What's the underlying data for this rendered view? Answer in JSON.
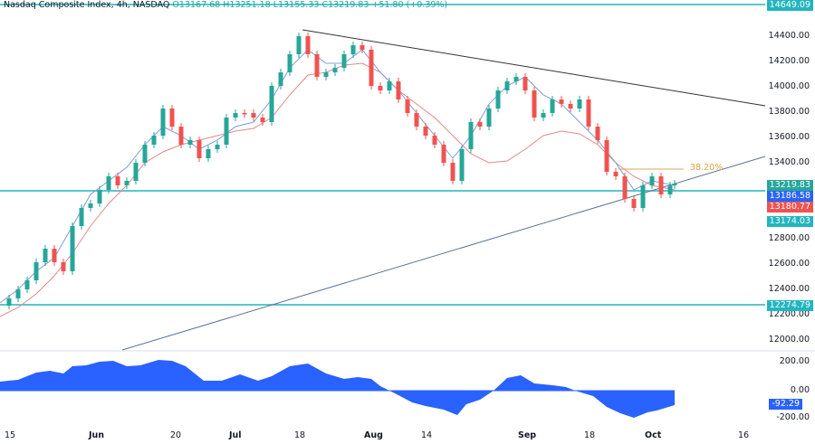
{
  "header": {
    "symbol": "Nasdaq Composite Index, 4h, NASDAQ",
    "open": "O13167.68",
    "high": "H13251.18",
    "low": "L13155.33",
    "close": "C13219.83",
    "change": "+51.80 (+0.39%)"
  },
  "colors": {
    "up": "#26a69a",
    "down": "#ef5350",
    "level_line": "#22b5bf",
    "trendline_down": "#333333",
    "trendline_up": "#5b7396",
    "ma_fast": "#7f9cd4",
    "ma_slow": "#e08a8a",
    "fib": "#e0b873",
    "oscillator": "#2962ff"
  },
  "price_axis": {
    "ticks": [
      "14400.00",
      "14200.00",
      "14000.00",
      "13800.00",
      "13600.00",
      "13400.00",
      "12800.00",
      "12600.00",
      "12400.00",
      "12200.00",
      "12000.00"
    ],
    "tags": [
      {
        "label": "14649.09",
        "color": "#22b5bf"
      },
      {
        "label": "13219.83",
        "color": "#26a69a"
      },
      {
        "label": "13186.58",
        "color": "#2962ff"
      },
      {
        "label": "13180.77",
        "color": "#ef5350"
      },
      {
        "label": "13174.03",
        "color": "#22b5bf"
      },
      {
        "label": "12274.79",
        "color": "#22b5bf"
      }
    ]
  },
  "osc_axis": {
    "ticks": [
      "200.00",
      "0.00",
      "-200.00"
    ],
    "tag": "-92.29"
  },
  "fib_label": "38.20%",
  "time_axis": [
    {
      "label": "15",
      "bold": false
    },
    {
      "label": "Jun",
      "bold": true
    },
    {
      "label": "20",
      "bold": false
    },
    {
      "label": "Jul",
      "bold": true
    },
    {
      "label": "18",
      "bold": false
    },
    {
      "label": "Aug",
      "bold": true
    },
    {
      "label": "14",
      "bold": false
    },
    {
      "label": "Sep",
      "bold": true
    },
    {
      "label": "18",
      "bold": false
    },
    {
      "label": "Oct",
      "bold": true
    },
    {
      "label": "16",
      "bold": false
    }
  ],
  "chart_data": {
    "type": "candlestick",
    "title": "Nasdaq Composite Index, 4h, NASDAQ",
    "ohlc_last": {
      "open": 13167.68,
      "high": 13251.18,
      "low": 13155.33,
      "close": 13219.83,
      "change": 51.8,
      "change_pct": 0.39
    },
    "ylim": [
      11900,
      14700
    ],
    "horizontal_levels": [
      14649.09,
      13174.03,
      12274.79
    ],
    "fib_level": {
      "label": "38.20%",
      "price": 13340
    },
    "trendlines": [
      {
        "name": "descending resistance",
        "from": {
          "x": "Jul 18",
          "price": 14450
        },
        "to": {
          "x": "Oct 20",
          "price": 13860
        }
      },
      {
        "name": "ascending support",
        "from": {
          "x": "Jun 1",
          "price": 11950
        },
        "to": {
          "x": "Oct 20",
          "price": 13430
        }
      }
    ],
    "x_ticks": [
      "15",
      "Jun",
      "20",
      "Jul",
      "18",
      "Aug",
      "14",
      "Sep",
      "18",
      "Oct",
      "16"
    ],
    "approx_close_path": [
      {
        "x": "May 15",
        "close": 12250
      },
      {
        "x": "May 22",
        "close": 12450
      },
      {
        "x": "May 29",
        "close": 12650
      },
      {
        "x": "Jun 5",
        "close": 13050
      },
      {
        "x": "Jun 12",
        "close": 13450
      },
      {
        "x": "Jun 16",
        "close": 13800
      },
      {
        "x": "Jun 23",
        "close": 13500
      },
      {
        "x": "Jun 30",
        "close": 13650
      },
      {
        "x": "Jul 7",
        "close": 13700
      },
      {
        "x": "Jul 14",
        "close": 14150
      },
      {
        "x": "Jul 18",
        "close": 14450
      },
      {
        "x": "Jul 24",
        "close": 14050
      },
      {
        "x": "Jul 31",
        "close": 14300
      },
      {
        "x": "Aug 4",
        "close": 13950
      },
      {
        "x": "Aug 11",
        "close": 13600
      },
      {
        "x": "Aug 18",
        "close": 13250
      },
      {
        "x": "Aug 25",
        "close": 13700
      },
      {
        "x": "Aug 31",
        "close": 14100
      },
      {
        "x": "Sep 6",
        "close": 13800
      },
      {
        "x": "Sep 12",
        "close": 13900
      },
      {
        "x": "Sep 18",
        "close": 13700
      },
      {
        "x": "Sep 22",
        "close": 13250
      },
      {
        "x": "Sep 26",
        "close": 13050
      },
      {
        "x": "Sep 29",
        "close": 13300
      },
      {
        "x": "Oct 3",
        "close": 13100
      },
      {
        "x": "Oct 5",
        "close": 13219.83
      }
    ],
    "indicators": {
      "ma_fast": {
        "last": 13186.58
      },
      "ma_slow": {
        "last": 13180.77
      },
      "oscillator": {
        "last": -92.29,
        "ylim": [
          -250,
          250
        ],
        "ticks": [
          200,
          0,
          -200
        ]
      }
    }
  }
}
